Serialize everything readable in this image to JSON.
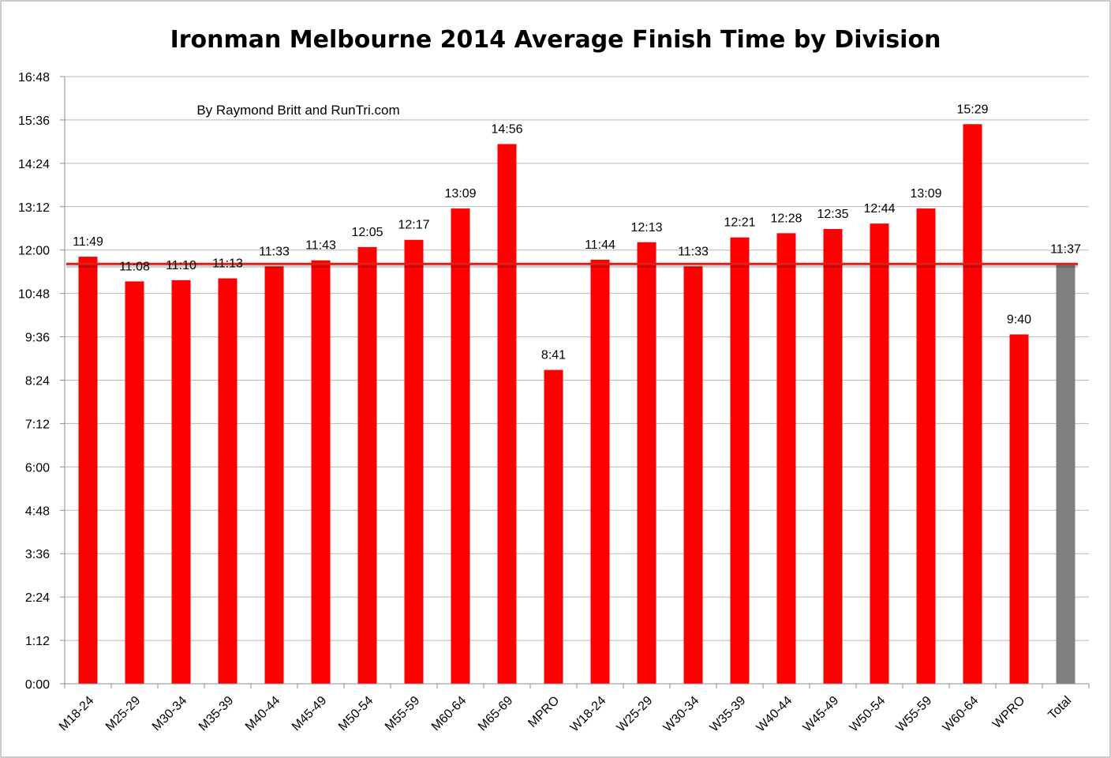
{
  "chart_data": {
    "type": "bar",
    "title": "Ironman Melbourne 2014 Average Finish Time by Division",
    "subtitle": "By Raymond Britt and RunTri.com",
    "xlabel": "",
    "ylabel": "",
    "y_unit": "h:mm",
    "ylim": [
      "0:00",
      "16:48"
    ],
    "y_ticks": [
      "0:00",
      "1:12",
      "2:24",
      "3:36",
      "4:48",
      "6:00",
      "7:12",
      "8:24",
      "9:36",
      "10:48",
      "12:00",
      "13:12",
      "14:24",
      "15:36",
      "16:48"
    ],
    "grid": true,
    "legend": "none",
    "categories": [
      "M18-24",
      "M25-29",
      "M30-34",
      "M35-39",
      "M40-44",
      "M45-49",
      "M50-54",
      "M55-59",
      "M60-64",
      "M65-69",
      "MPRO",
      "W18-24",
      "W25-29",
      "W30-34",
      "W35-39",
      "W40-44",
      "W45-49",
      "W50-54",
      "W55-59",
      "W60-64",
      "WPRO",
      "Total"
    ],
    "values": [
      "11:49",
      "11:08",
      "11:10",
      "11:13",
      "11:33",
      "11:43",
      "12:05",
      "12:17",
      "13:09",
      "14:56",
      "8:41",
      "11:44",
      "12:13",
      "11:33",
      "12:21",
      "12:28",
      "12:35",
      "12:44",
      "13:09",
      "15:29",
      "9:40",
      "11:37"
    ],
    "reference_line": {
      "value": "11:37",
      "color": "#e0201a"
    },
    "colors": {
      "bar": "#ff0000",
      "total_bar": "#7f7f7f",
      "reference_line": "#e0201a"
    }
  }
}
